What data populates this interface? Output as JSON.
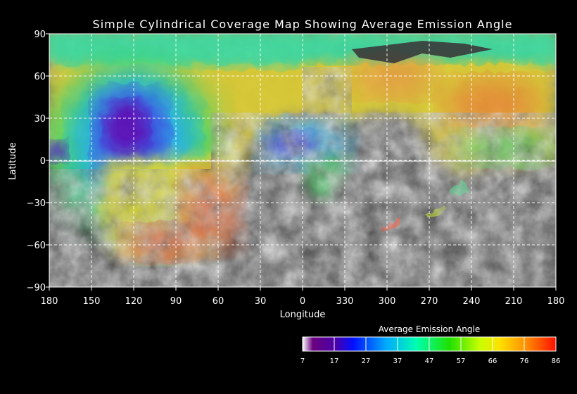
{
  "map": {
    "title": "Simple Cylindrical Coverage Map Showing Average Emission Angle",
    "xlabel": "Longitude",
    "ylabel": "Latitude",
    "x_ticks": [
      "180",
      "150",
      "120",
      "90",
      "60",
      "30",
      "0",
      "330",
      "300",
      "270",
      "240",
      "210",
      "180"
    ],
    "y_ticks": [
      "90",
      "60",
      "30",
      "0",
      "−30",
      "−60",
      "−90"
    ],
    "grid": "on"
  },
  "colorbar": {
    "title": "Average Emission Angle",
    "ticks": [
      "7",
      "17",
      "27",
      "37",
      "47",
      "57",
      "66",
      "76",
      "86"
    ],
    "min": 7,
    "max": 86
  }
}
